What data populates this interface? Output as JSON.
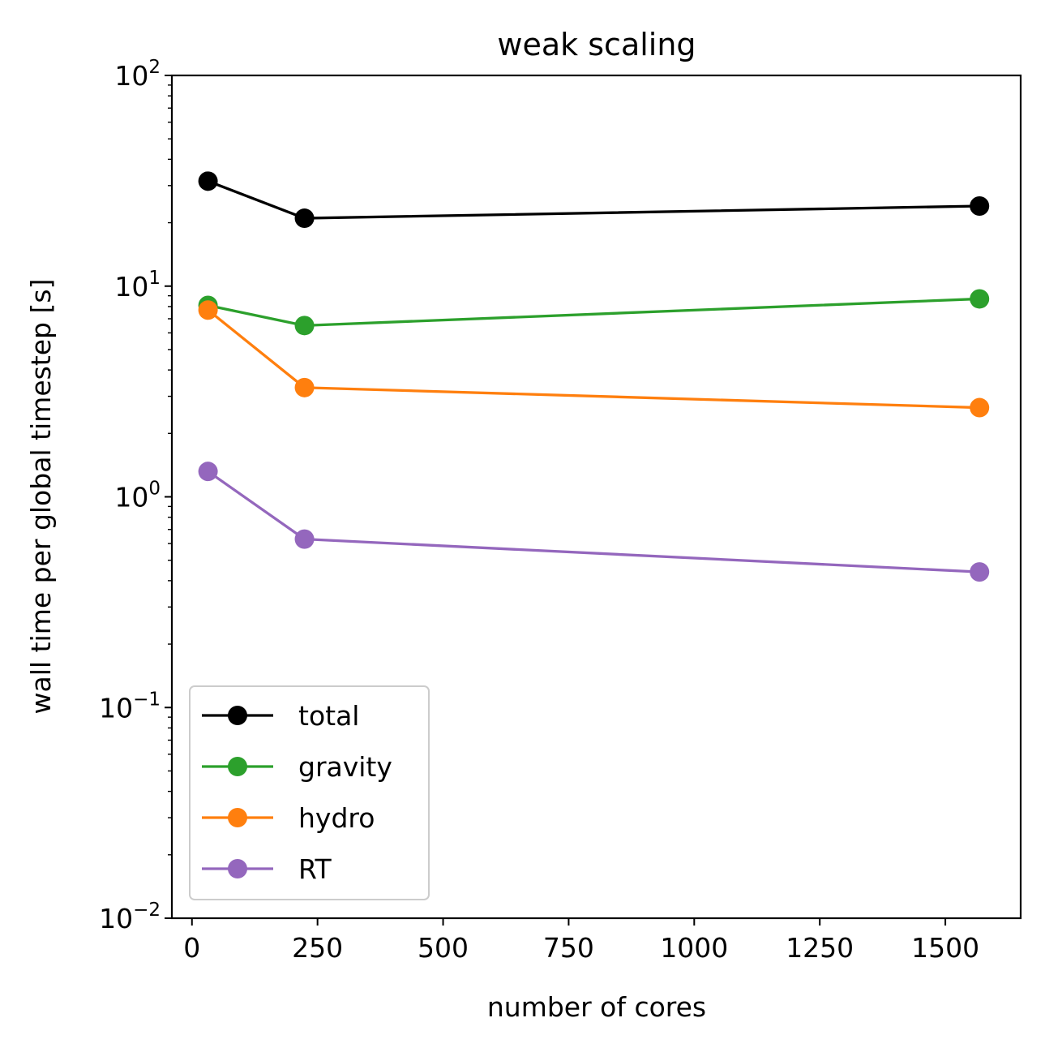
{
  "chart_data": {
    "type": "line",
    "title": "weak scaling",
    "xlabel": "number of cores",
    "ylabel": "wall time per global timestep [s]",
    "y_scale": "log",
    "xlim": [
      -40,
      1650
    ],
    "ylim": [
      0.01,
      100
    ],
    "x": [
      32,
      224,
      1568
    ],
    "x_ticks": [
      0,
      250,
      500,
      750,
      1000,
      1250,
      1500
    ],
    "x_tick_labels": [
      "0",
      "250",
      "500",
      "750",
      "1000",
      "1250",
      "1500"
    ],
    "y_ticks": [
      0.01,
      0.1,
      1,
      10,
      100
    ],
    "y_tick_labels": [
      {
        "base": "10",
        "exp": "−2"
      },
      {
        "base": "10",
        "exp": "−1"
      },
      {
        "base": "10",
        "exp": "0"
      },
      {
        "base": "10",
        "exp": "1"
      },
      {
        "base": "10",
        "exp": "2"
      }
    ],
    "grid": false,
    "legend_position": "lower-left",
    "series": [
      {
        "name": "total",
        "color": "#000000",
        "values": [
          31.5,
          21.0,
          24.0
        ]
      },
      {
        "name": "gravity",
        "color": "#2ca02c",
        "values": [
          8.1,
          6.5,
          8.7
        ]
      },
      {
        "name": "hydro",
        "color": "#ff7f0e",
        "values": [
          7.7,
          3.3,
          2.65
        ]
      },
      {
        "name": "RT",
        "color": "#9467bd",
        "values": [
          1.32,
          0.63,
          0.44
        ]
      }
    ]
  }
}
